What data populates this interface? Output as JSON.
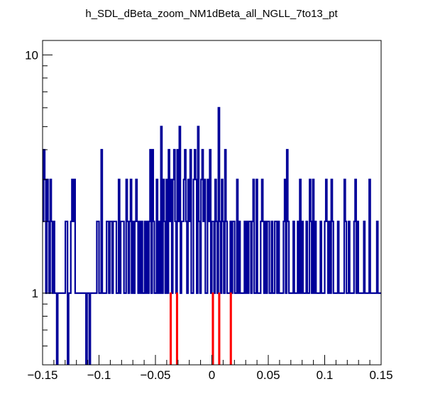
{
  "chart_data": {
    "type": "histogram",
    "title": "h_SDL_dBeta_zoom_NM1dBeta_all_NGLL_7to13_pt",
    "xlabel": "",
    "ylabel": "",
    "xlim": [
      -0.15,
      0.15
    ],
    "ylim": [
      0.5,
      11.5
    ],
    "yscale": "log",
    "grid": false,
    "legend": "none",
    "x_ticks": [
      -0.15,
      -0.1,
      -0.05,
      0,
      0.05,
      0.1,
      0.15
    ],
    "x_tick_labels": [
      "−0.15",
      "−0.1",
      "−0.05",
      "0",
      "0.05",
      "0.1",
      "0.15"
    ],
    "y_ticks": [
      1,
      10
    ],
    "y_tick_labels": [
      "1",
      "10"
    ],
    "bins": 300,
    "series": [
      {
        "color": "#000099",
        "values": [
          2,
          4,
          3,
          1,
          3,
          2,
          1,
          3,
          2,
          1,
          2,
          1,
          1,
          0,
          1,
          1,
          1,
          1,
          1,
          1,
          1,
          2,
          2,
          0,
          1,
          1,
          2,
          3,
          2,
          3,
          1,
          1,
          1,
          1,
          1,
          1,
          1,
          1,
          1,
          1,
          0,
          1,
          1,
          0,
          1,
          1,
          1,
          1,
          1,
          1,
          2,
          2,
          1,
          1,
          4,
          1,
          1,
          1,
          1,
          2,
          2,
          1,
          2,
          2,
          1,
          2,
          2,
          2,
          1,
          1,
          3,
          1,
          2,
          2,
          2,
          1,
          1,
          3,
          2,
          1,
          2,
          3,
          1,
          2,
          1,
          2,
          3,
          2,
          1,
          2,
          1,
          2,
          1,
          1,
          2,
          1,
          2,
          1,
          2,
          4,
          1,
          4,
          2,
          1,
          1,
          3,
          1,
          2,
          1,
          5,
          1,
          3,
          2,
          1,
          3,
          1,
          4,
          2,
          3,
          1,
          3,
          4,
          2,
          1,
          4,
          2,
          5,
          1,
          2,
          2,
          3,
          4,
          2,
          1,
          3,
          2,
          4,
          1,
          1,
          3,
          4,
          3,
          1,
          5,
          2,
          1,
          3,
          4,
          2,
          3,
          1,
          1,
          3,
          2,
          4,
          1,
          2,
          2,
          1,
          3,
          2,
          1,
          6,
          2,
          1,
          3,
          2,
          1,
          4,
          2,
          1,
          1,
          1,
          2,
          1,
          2,
          2,
          1,
          1,
          3,
          1,
          2,
          1,
          1,
          1,
          1,
          2,
          1,
          2,
          1,
          2,
          2,
          1,
          2,
          3,
          1,
          1,
          3,
          1,
          1,
          1,
          2,
          3,
          2,
          1,
          2,
          1,
          2,
          2,
          1,
          1,
          2,
          1,
          1,
          2,
          2,
          1,
          2,
          1,
          1,
          1,
          1,
          2,
          3,
          1,
          4,
          2,
          1,
          1,
          1,
          1,
          2,
          1,
          1,
          1,
          2,
          1,
          3,
          1,
          2,
          1,
          1,
          1,
          2,
          1,
          1,
          3,
          2,
          1,
          3,
          1,
          2,
          1,
          1,
          1,
          1,
          2,
          1,
          1,
          1,
          2,
          3,
          2,
          1,
          2,
          1,
          3,
          2,
          1,
          1,
          1,
          1,
          2,
          1,
          1,
          1,
          1,
          1,
          3,
          2,
          1,
          1,
          2,
          1,
          1,
          1,
          1,
          2,
          3,
          1,
          2,
          1,
          1,
          1,
          1,
          1,
          2,
          1,
          1,
          1,
          1,
          3,
          1,
          1,
          1,
          1,
          1,
          1,
          2,
          1,
          1,
          1
        ]
      },
      {
        "color": "#ff0000",
        "values": [
          0,
          0,
          0,
          0,
          0,
          0,
          0,
          0,
          0,
          0,
          0,
          0,
          0,
          0,
          0,
          0,
          0,
          0,
          0,
          0,
          0,
          0,
          0,
          0,
          0,
          0,
          0,
          0,
          0,
          0,
          0,
          0,
          0,
          0,
          0,
          0,
          0,
          0,
          0,
          0,
          0,
          0,
          0,
          0,
          0,
          0,
          0,
          0,
          0,
          0,
          0,
          0,
          0,
          0,
          0,
          0,
          0,
          0,
          0,
          0,
          0,
          0,
          0,
          0,
          0,
          0,
          0,
          0,
          0,
          0,
          0,
          0,
          0,
          0,
          0,
          0,
          0,
          0,
          0,
          0,
          0,
          0,
          0,
          0,
          0,
          0,
          0,
          0,
          0,
          0,
          0,
          0,
          0,
          0,
          0,
          0,
          0,
          0,
          0,
          0,
          0,
          0,
          0,
          0,
          0,
          0,
          0,
          0,
          0,
          0,
          0,
          0,
          0,
          0,
          0,
          0,
          0,
          0,
          0,
          0,
          0,
          1,
          0,
          0,
          0,
          0,
          0,
          1,
          0,
          0,
          0,
          0,
          0,
          0,
          0,
          0,
          0,
          0,
          0,
          0,
          0,
          0,
          0,
          0,
          0,
          0,
          0,
          0,
          0,
          0,
          0,
          0,
          0,
          0,
          0,
          0,
          0,
          0,
          0,
          0,
          0,
          1,
          0,
          0,
          0,
          0,
          0,
          1,
          0,
          0,
          0,
          0,
          0,
          0,
          0,
          0,
          0,
          0,
          1,
          0,
          0,
          0,
          0,
          0,
          0,
          0,
          0,
          0,
          0,
          0,
          0,
          0,
          0,
          0,
          0,
          0,
          0,
          0,
          0,
          0,
          0,
          0,
          0,
          0,
          0,
          0,
          0,
          0,
          0,
          0,
          0,
          0,
          0,
          0,
          0,
          0,
          0,
          0,
          0,
          0,
          0,
          0,
          0,
          0,
          0,
          0,
          0,
          0,
          0,
          0,
          0,
          0,
          0,
          0,
          0,
          0,
          0,
          0,
          0,
          0,
          0,
          0,
          0,
          0,
          0,
          0,
          0,
          0,
          0,
          0,
          0,
          0,
          0,
          0,
          0,
          0,
          0,
          0,
          0,
          0,
          0,
          0,
          0,
          0,
          0,
          0,
          0,
          0,
          0,
          0,
          0,
          0,
          0,
          0,
          0,
          0,
          0,
          0,
          0,
          0,
          0,
          0,
          0,
          0,
          0,
          0,
          0,
          0,
          0,
          0,
          0,
          0,
          0,
          0,
          0,
          0,
          0,
          0,
          0,
          0,
          0,
          0,
          0,
          0,
          0,
          0,
          0,
          0,
          0,
          0,
          0,
          0,
          0,
          0,
          0,
          0,
          0,
          0,
          0,
          0,
          0
        ]
      }
    ]
  }
}
